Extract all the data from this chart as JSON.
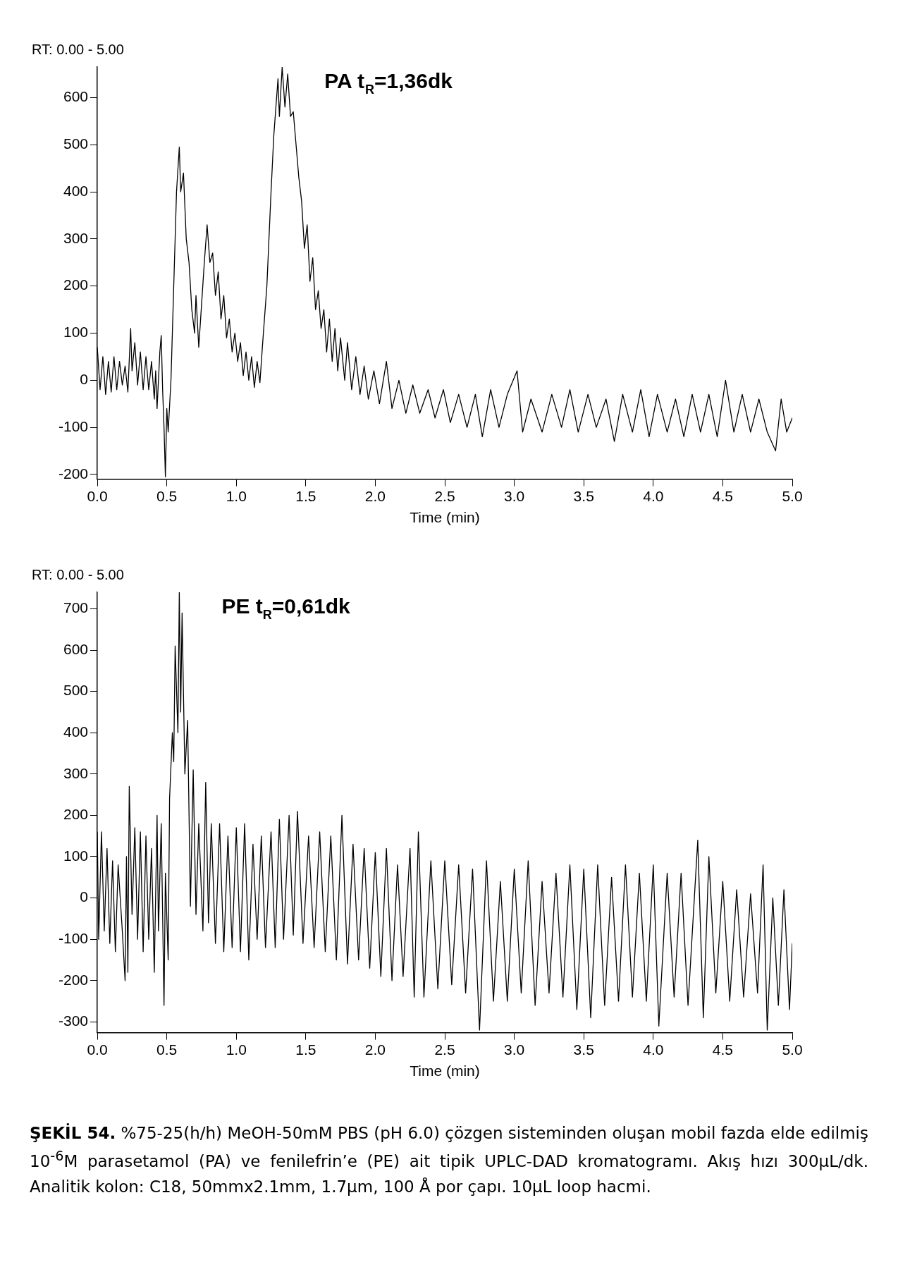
{
  "chart_data": [
    {
      "type": "line",
      "title": "PA t$_{R}$=1,36dk",
      "subtitle": "RT: 0.00 - 5.00",
      "xlabel": "Time (min)",
      "xlim": [
        0,
        5
      ],
      "xticks": [
        {
          "value": 0,
          "label": "0.0"
        },
        {
          "value": 0.5,
          "label": "0.5"
        },
        {
          "value": 1,
          "label": "1.0"
        },
        {
          "value": 1.5,
          "label": "1.5"
        },
        {
          "value": 2,
          "label": "2.0"
        },
        {
          "value": 2.5,
          "label": "2.5"
        },
        {
          "value": 3,
          "label": "3.0"
        },
        {
          "value": 3.5,
          "label": "3.5"
        },
        {
          "value": 4,
          "label": "4.0"
        },
        {
          "value": 4.5,
          "label": "4.5"
        },
        {
          "value": 5,
          "label": "5.0"
        }
      ],
      "ylim": [
        -210,
        665
      ],
      "yticks": [
        -200,
        -100,
        0,
        100,
        200,
        300,
        400,
        500,
        600
      ],
      "x": [
        0,
        0.02,
        0.04,
        0.06,
        0.08,
        0.1,
        0.12,
        0.14,
        0.16,
        0.18,
        0.2,
        0.22,
        0.24,
        0.25,
        0.27,
        0.29,
        0.31,
        0.33,
        0.35,
        0.37,
        0.39,
        0.41,
        0.42,
        0.43,
        0.45,
        0.46,
        0.47,
        0.48,
        0.49,
        0.5,
        0.51,
        0.53,
        0.55,
        0.57,
        0.59,
        0.6,
        0.62,
        0.64,
        0.66,
        0.68,
        0.7,
        0.71,
        0.73,
        0.75,
        0.77,
        0.79,
        0.81,
        0.83,
        0.85,
        0.87,
        0.89,
        0.91,
        0.93,
        0.95,
        0.97,
        0.99,
        1.01,
        1.03,
        1.05,
        1.07,
        1.09,
        1.11,
        1.13,
        1.15,
        1.17,
        1.19,
        1.22,
        1.25,
        1.27,
        1.3,
        1.31,
        1.33,
        1.35,
        1.37,
        1.39,
        1.41,
        1.43,
        1.45,
        1.47,
        1.49,
        1.51,
        1.53,
        1.55,
        1.57,
        1.59,
        1.61,
        1.63,
        1.65,
        1.67,
        1.69,
        1.71,
        1.73,
        1.75,
        1.78,
        1.8,
        1.83,
        1.86,
        1.89,
        1.92,
        1.95,
        1.99,
        2.03,
        2.08,
        2.12,
        2.17,
        2.22,
        2.27,
        2.32,
        2.38,
        2.43,
        2.49,
        2.54,
        2.6,
        2.66,
        2.72,
        2.77,
        2.83,
        2.89,
        2.95,
        3.02,
        3.06,
        3.12,
        3.2,
        3.27,
        3.34,
        3.4,
        3.46,
        3.53,
        3.59,
        3.66,
        3.72,
        3.78,
        3.85,
        3.91,
        3.97,
        4.03,
        4.1,
        4.16,
        4.22,
        4.28,
        4.34,
        4.4,
        4.46,
        4.52,
        4.58,
        4.64,
        4.7,
        4.76,
        4.82,
        4.88,
        4.92,
        4.96,
        5
      ],
      "series": [
        {
          "color": "#000000",
          "values": [
            70,
            -20,
            50,
            -30,
            40,
            -25,
            50,
            -20,
            40,
            -10,
            30,
            -25,
            110,
            20,
            80,
            -10,
            60,
            -20,
            50,
            -20,
            40,
            -40,
            20,
            -60,
            60,
            95,
            -20,
            -100,
            -205,
            -60,
            -110,
            0,
            200,
            400,
            495,
            400,
            440,
            300,
            250,
            150,
            100,
            180,
            70,
            160,
            250,
            330,
            250,
            270,
            180,
            230,
            130,
            180,
            90,
            130,
            60,
            100,
            40,
            80,
            10,
            60,
            0,
            50,
            -15,
            40,
            -5,
            80,
            200,
            400,
            520,
            640,
            560,
            665,
            580,
            650,
            560,
            570,
            500,
            430,
            380,
            280,
            330,
            210,
            260,
            150,
            190,
            110,
            150,
            60,
            130,
            40,
            110,
            20,
            90,
            0,
            80,
            -20,
            50,
            -30,
            30,
            -40,
            20,
            -50,
            40,
            -60,
            0,
            -70,
            -10,
            -70,
            -20,
            -80,
            -20,
            -90,
            -30,
            -100,
            -30,
            -120,
            -20,
            -100,
            -30,
            20,
            -110,
            -40,
            -110,
            -30,
            -100,
            -20,
            -110,
            -30,
            -100,
            -40,
            -130,
            -30,
            -110,
            -20,
            -120,
            -30,
            -110,
            -40,
            -120,
            -30,
            -110,
            -30,
            -120,
            0,
            -110,
            -30,
            -110,
            -40,
            -110,
            -150,
            -40,
            -110,
            -80
          ]
        }
      ]
    },
    {
      "type": "line",
      "title": "PE t$_{R}$=0,61dk",
      "subtitle": "RT: 0.00 - 5.00",
      "xlabel": "Time (min)",
      "xlim": [
        0,
        5
      ],
      "xticks": [
        {
          "value": 0,
          "label": "0.0"
        },
        {
          "value": 0.5,
          "label": "0.5"
        },
        {
          "value": 1,
          "label": "1.0"
        },
        {
          "value": 1.5,
          "label": "1.5"
        },
        {
          "value": 2,
          "label": "2.0"
        },
        {
          "value": 2.5,
          "label": "2.5"
        },
        {
          "value": 3,
          "label": "3.0"
        },
        {
          "value": 3.5,
          "label": "3.5"
        },
        {
          "value": 4,
          "label": "4.0"
        },
        {
          "value": 4.5,
          "label": "4.5"
        },
        {
          "value": 5,
          "label": "5.0"
        }
      ],
      "ylim": [
        -326,
        740
      ],
      "yticks": [
        -300,
        -200,
        -100,
        0,
        100,
        200,
        300,
        400,
        500,
        600,
        700
      ],
      "x": [
        0,
        0.01,
        0.03,
        0.05,
        0.07,
        0.09,
        0.11,
        0.13,
        0.15,
        0.18,
        0.2,
        0.21,
        0.22,
        0.23,
        0.25,
        0.27,
        0.29,
        0.31,
        0.33,
        0.35,
        0.37,
        0.39,
        0.41,
        0.43,
        0.44,
        0.46,
        0.48,
        0.49,
        0.51,
        0.52,
        0.54,
        0.55,
        0.56,
        0.58,
        0.59,
        0.6,
        0.61,
        0.63,
        0.65,
        0.67,
        0.69,
        0.71,
        0.73,
        0.76,
        0.78,
        0.8,
        0.82,
        0.85,
        0.88,
        0.91,
        0.94,
        0.97,
        1,
        1.03,
        1.06,
        1.09,
        1.12,
        1.15,
        1.18,
        1.21,
        1.25,
        1.28,
        1.31,
        1.34,
        1.38,
        1.41,
        1.44,
        1.48,
        1.52,
        1.56,
        1.6,
        1.64,
        1.68,
        1.72,
        1.76,
        1.8,
        1.84,
        1.88,
        1.92,
        1.96,
        2,
        2.04,
        2.08,
        2.12,
        2.16,
        2.2,
        2.25,
        2.28,
        2.31,
        2.35,
        2.4,
        2.45,
        2.5,
        2.55,
        2.6,
        2.65,
        2.7,
        2.75,
        2.8,
        2.85,
        2.9,
        2.95,
        3,
        3.05,
        3.1,
        3.15,
        3.2,
        3.25,
        3.3,
        3.35,
        3.4,
        3.45,
        3.5,
        3.55,
        3.6,
        3.65,
        3.7,
        3.75,
        3.8,
        3.85,
        3.9,
        3.95,
        4,
        4.04,
        4.1,
        4.15,
        4.2,
        4.25,
        4.32,
        4.36,
        4.4,
        4.45,
        4.5,
        4.55,
        4.6,
        4.65,
        4.7,
        4.75,
        4.79,
        4.82,
        4.86,
        4.9,
        4.94,
        4.98,
        5
      ],
      "series": [
        {
          "color": "#000000",
          "values": [
            160,
            -100,
            160,
            -80,
            120,
            -110,
            90,
            -130,
            80,
            -80,
            -200,
            100,
            -180,
            270,
            -40,
            170,
            -100,
            160,
            -130,
            150,
            -100,
            120,
            -180,
            200,
            -80,
            180,
            -260,
            60,
            -150,
            240,
            400,
            330,
            610,
            400,
            740,
            450,
            690,
            300,
            430,
            -20,
            310,
            -40,
            180,
            -80,
            280,
            -60,
            180,
            -110,
            180,
            -130,
            150,
            -120,
            170,
            -130,
            180,
            -150,
            130,
            -100,
            150,
            -120,
            160,
            -120,
            190,
            -100,
            200,
            -90,
            210,
            -110,
            150,
            -120,
            160,
            -130,
            150,
            -150,
            200,
            -160,
            130,
            -150,
            120,
            -170,
            110,
            -190,
            120,
            -200,
            80,
            -190,
            120,
            -240,
            160,
            -240,
            90,
            -220,
            90,
            -210,
            80,
            -230,
            70,
            -320,
            90,
            -250,
            40,
            -250,
            70,
            -230,
            90,
            -260,
            40,
            -230,
            60,
            -240,
            80,
            -270,
            70,
            -290,
            80,
            -260,
            50,
            -250,
            80,
            -240,
            60,
            -250,
            80,
            -310,
            60,
            -240,
            60,
            -260,
            140,
            -290,
            100,
            -230,
            40,
            -250,
            20,
            -240,
            10,
            -230,
            80,
            -320,
            0,
            -260,
            20,
            -270,
            -110
          ]
        }
      ],
      "annotations": [
        "ŞEKİL 54.",
        "%75-25(h/h) MeOH-50mM PBS (pH 6.0) çözgen sisteminden oluşan mobil fazda elde edilmiş 10$^{-6}$M parasetamol (PA) ve fenilefrin’e (PE) ait tipik UPLC-DAD kromatogramı. Akış hızı 300µL/dk. Analitik kolon: C18, 50mmx2.1mm, 1.7µm, 100 Å por çapı. 10µL loop hacmi."
      ]
    }
  ]
}
